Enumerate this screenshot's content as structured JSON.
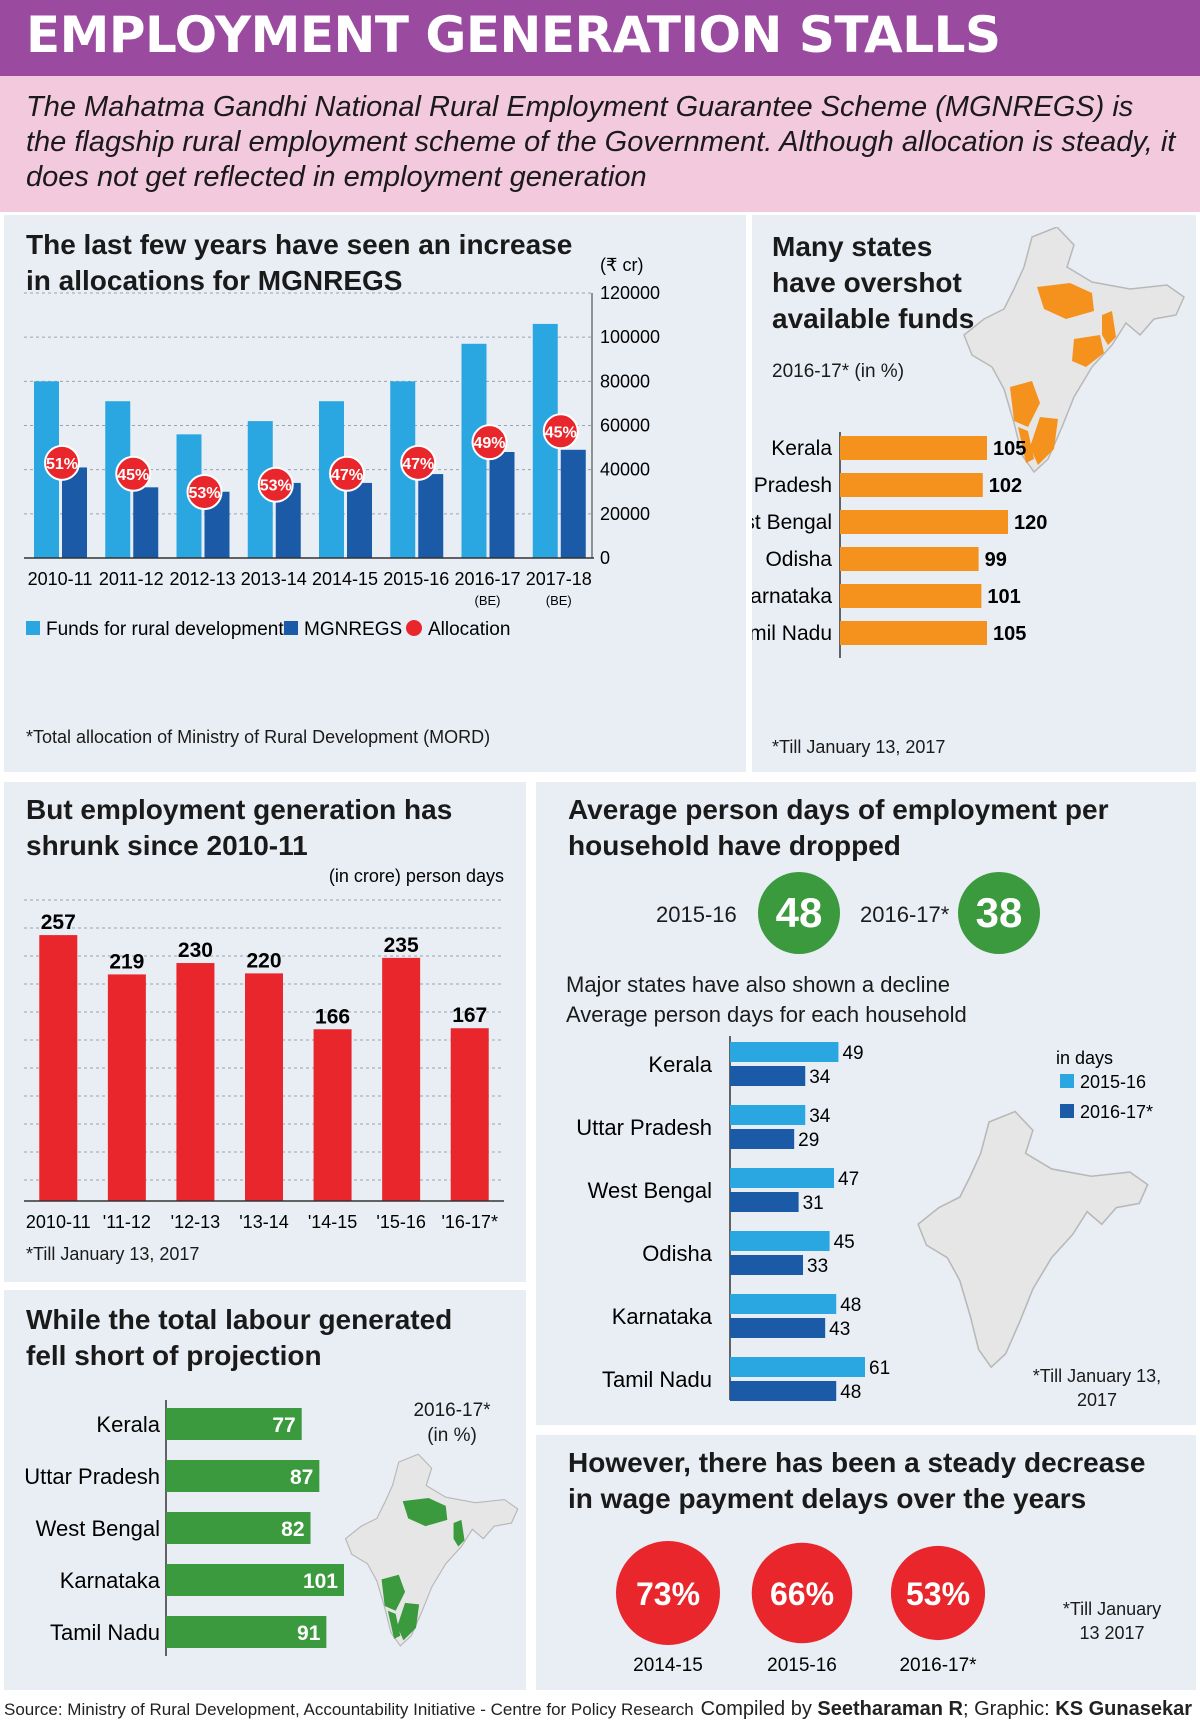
{
  "header": {
    "title": "EMPLOYMENT GENERATION STALLS",
    "intro": "The Mahatma Gandhi National Rural Employment Guarantee Scheme (MGNREGS) is the flagship rural employment scheme of the Government. Although allocation is steady, it does not get reflected in employment generation"
  },
  "panel1": {
    "title": "The last few years have seen an increase in allocations for MGNREGS",
    "footnote": "*Total allocation of Ministry of Rural Development (MORD)"
  },
  "panel2": {
    "title": "Many states have overshot available funds",
    "subtitle": "2016-17* (in %)",
    "footnote": "*Till January 13, 2017"
  },
  "panel3": {
    "title": "But employment generation has shrunk since 2010-11",
    "footnote": "*Till January 13, 2017"
  },
  "panel4": {
    "title": "Average person days of employment per household have dropped",
    "year1": "2015-16",
    "value1": "48",
    "year2": "2016-17*",
    "value2": "38",
    "sub1": "Major states have also shown a decline",
    "sub2": "Average person days for each household",
    "footnote": "*Till January 13, 2017"
  },
  "panel5": {
    "title": "While the total labour generated fell short of projection",
    "subtitle": "2016-17* (in %)"
  },
  "panel6": {
    "title": "However, there has been a steady decrease in wage payment delays over the years",
    "footnote": "*Till January 13 2017"
  },
  "footer": {
    "source": "Source: Ministry of Rural Development, Accountability Initiative - Centre for Policy Research",
    "credit_prefix": "Compiled by ",
    "credit_author": "Seetharaman R",
    "credit_mid": "; Graphic: ",
    "credit_graphic": "KS Gunasekar"
  },
  "colors": {
    "purple": "#9b4b9f",
    "pink": "#f3c9de",
    "panel": "#e9eef5",
    "light_blue": "#2aa7e1",
    "dark_blue": "#1b5aa6",
    "red": "#e8262c",
    "orange": "#f5921e",
    "green": "#3a9a3d",
    "map_grey": "#e6e6e6"
  },
  "chart_data": [
    {
      "id": "allocations",
      "type": "bar",
      "categories": [
        "2010-11",
        "2011-12",
        "2012-13",
        "2013-14",
        "2014-15",
        "2015-16",
        "2016-17",
        "2017-18"
      ],
      "category_notes": [
        "",
        "",
        "",
        "",
        "",
        "",
        "(BE)",
        "(BE)"
      ],
      "series": [
        {
          "name": "Funds for rural development*",
          "values": [
            80000,
            71000,
            56000,
            62000,
            71000,
            80000,
            97000,
            106000
          ],
          "color": "#2aa7e1"
        },
        {
          "name": "MGNREGS",
          "values": [
            41000,
            32000,
            30000,
            34000,
            34000,
            38000,
            48000,
            49000
          ],
          "color": "#1b5aa6"
        },
        {
          "name": "Allocation",
          "values": [
            51,
            45,
            53,
            53,
            47,
            47,
            49,
            45
          ],
          "unit": "%",
          "color": "#e8262c"
        }
      ],
      "unit_label": "(₹ cr)",
      "yticks": [
        0,
        20000,
        40000,
        60000,
        80000,
        100000,
        120000
      ],
      "ylim": [
        0,
        120000
      ],
      "grid": true,
      "legend": "bottom"
    },
    {
      "id": "overshot",
      "type": "bar",
      "orientation": "horizontal",
      "categories": [
        "Kerala",
        "Uttar Pradesh",
        "West Bengal",
        "Odisha",
        "Karnataka",
        "Tamil Nadu"
      ],
      "values": [
        105,
        102,
        120,
        99,
        101,
        105
      ],
      "color": "#f5921e",
      "xlim": [
        0,
        120
      ]
    },
    {
      "id": "employment",
      "type": "bar",
      "categories": [
        "2010-11",
        "'11-12",
        "'12-13",
        "'13-14",
        "'14-15",
        "'15-16",
        "'16-17*"
      ],
      "values": [
        257,
        219,
        230,
        220,
        166,
        235,
        167
      ],
      "unit_label": "(in crore) person days",
      "color": "#e8262c",
      "ylim": [
        0,
        260
      ],
      "grid": true
    },
    {
      "id": "person_days",
      "type": "bar",
      "orientation": "horizontal",
      "legend_title": "in days",
      "categories": [
        "Kerala",
        "Uttar Pradesh",
        "West Bengal",
        "Odisha",
        "Karnataka",
        "Tamil Nadu"
      ],
      "series": [
        {
          "name": "2015-16",
          "values": [
            49,
            34,
            47,
            45,
            48,
            61
          ],
          "color": "#2aa7e1"
        },
        {
          "name": "2016-17*",
          "values": [
            34,
            29,
            31,
            33,
            43,
            48
          ],
          "color": "#1b5aa6"
        }
      ],
      "xlim": [
        0,
        61
      ],
      "legend": "right"
    },
    {
      "id": "labour",
      "type": "bar",
      "orientation": "horizontal",
      "categories": [
        "Kerala",
        "Uttar Pradesh",
        "West Bengal",
        "Karnataka",
        "Tamil Nadu"
      ],
      "values": [
        77,
        87,
        82,
        101,
        91
      ],
      "color": "#3a9a3d",
      "xlim": [
        0,
        101
      ]
    },
    {
      "id": "wage_delays",
      "type": "bubble",
      "categories": [
        "2014-15",
        "2015-16",
        "2016-17*"
      ],
      "values": [
        73,
        66,
        53
      ],
      "unit": "%",
      "color": "#e8262c"
    }
  ]
}
